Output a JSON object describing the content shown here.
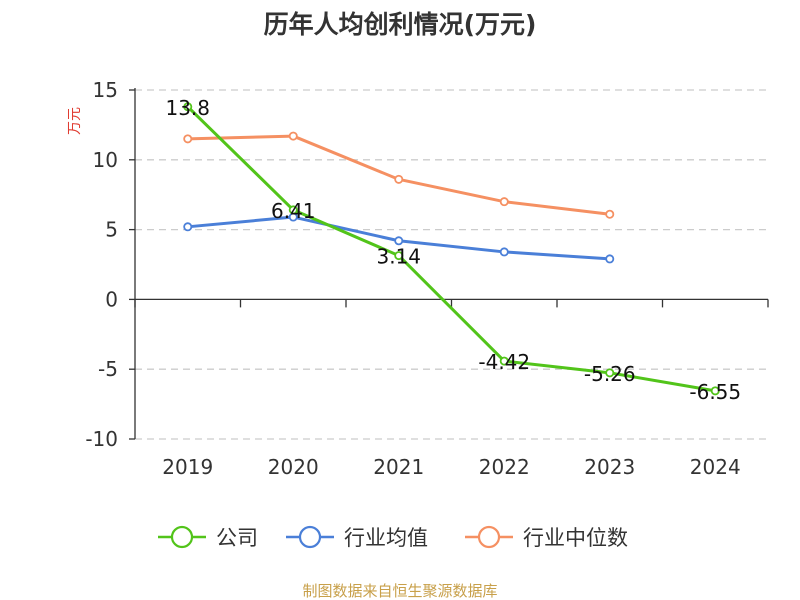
{
  "chart_data": {
    "type": "line",
    "title": "历年人均创利情况(万元)",
    "ylabel": "万元",
    "categories": [
      "2019",
      "2020",
      "2021",
      "2022",
      "2023",
      "2024"
    ],
    "ylim": [
      -10,
      15
    ],
    "yticks": [
      -10,
      -5,
      0,
      5,
      10,
      15
    ],
    "grid": true,
    "legend_position": "bottom",
    "series": [
      {
        "name": "公司",
        "color": "#52c41a",
        "values": [
          13.8,
          6.41,
          3.14,
          -4.42,
          -5.26,
          -6.55
        ],
        "data_labels": [
          "13.8",
          "6.41",
          "3.14",
          "-4.42",
          "-5.26",
          "-6.55"
        ]
      },
      {
        "name": "行业均值",
        "color": "#4a7fd8",
        "values": [
          5.2,
          5.9,
          4.2,
          3.4,
          2.9,
          null
        ]
      },
      {
        "name": "行业中位数",
        "color": "#f59062",
        "values": [
          11.5,
          11.7,
          8.6,
          7.0,
          6.1,
          null
        ]
      }
    ]
  },
  "colors": {
    "ylabel": "#e03c31",
    "source": "#c8a04a",
    "grid": "#cccccc",
    "axis": "#333333"
  },
  "source": "制图数据来自恒生聚源数据库"
}
